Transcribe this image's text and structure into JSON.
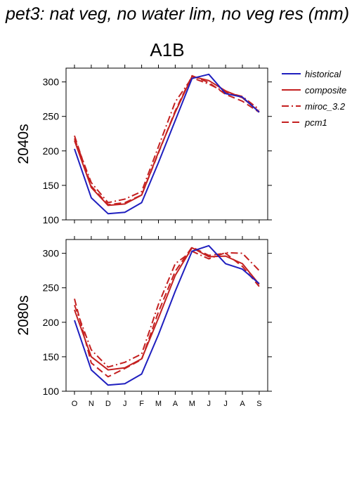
{
  "title": "pet3: nat veg, no water lim, no veg res (mm)",
  "scenario": "A1B",
  "colors": {
    "historical": "#1f1fbf",
    "composite": "#c42020",
    "miroc_3.2": "#c42020",
    "pcm1": "#c42020"
  },
  "legend": [
    {
      "name": "historical",
      "dash": "solid",
      "color": "#1f1fbf"
    },
    {
      "name": "composite",
      "dash": "solid",
      "color": "#c42020"
    },
    {
      "name": "miroc_3.2",
      "dash": "dashdot",
      "color": "#c42020"
    },
    {
      "name": "pcm1",
      "dash": "dash",
      "color": "#c42020"
    }
  ],
  "chart_data": [
    {
      "type": "line",
      "row_label": "2040s",
      "categories": [
        "O",
        "N",
        "D",
        "J",
        "F",
        "M",
        "A",
        "M",
        "J",
        "J",
        "A",
        "S"
      ],
      "ylim": [
        100,
        320
      ],
      "yticks": [
        100,
        150,
        200,
        250,
        300
      ],
      "series": [
        {
          "name": "historical",
          "values": [
            203,
            132,
            109,
            111,
            125,
            183,
            244,
            305,
            311,
            283,
            278,
            256
          ]
        },
        {
          "name": "composite",
          "values": [
            215,
            147,
            121,
            123,
            136,
            198,
            256,
            308,
            302,
            287,
            277,
            257
          ]
        },
        {
          "name": "miroc_3.2",
          "values": [
            218,
            154,
            125,
            130,
            141,
            206,
            271,
            306,
            297,
            285,
            279,
            260
          ]
        },
        {
          "name": "pcm1",
          "values": [
            222,
            149,
            122,
            125,
            136,
            197,
            258,
            309,
            299,
            282,
            272,
            256
          ]
        }
      ]
    },
    {
      "type": "line",
      "row_label": "2080s",
      "categories": [
        "O",
        "N",
        "D",
        "J",
        "F",
        "M",
        "A",
        "M",
        "J",
        "J",
        "A",
        "S"
      ],
      "ylim": [
        100,
        320
      ],
      "yticks": [
        100,
        150,
        200,
        250,
        300
      ],
      "series": [
        {
          "name": "historical",
          "values": [
            203,
            131,
            109,
            111,
            125,
            182,
            245,
            303,
            311,
            285,
            277,
            256
          ]
        },
        {
          "name": "composite",
          "values": [
            218,
            150,
            131,
            134,
            147,
            206,
            268,
            308,
            295,
            296,
            285,
            255
          ]
        },
        {
          "name": "miroc_3.2",
          "values": [
            225,
            160,
            135,
            142,
            154,
            226,
            285,
            303,
            292,
            301,
            300,
            275
          ]
        },
        {
          "name": "pcm1",
          "values": [
            234,
            141,
            121,
            133,
            146,
            215,
            274,
            309,
            297,
            300,
            281,
            252
          ]
        }
      ]
    }
  ]
}
